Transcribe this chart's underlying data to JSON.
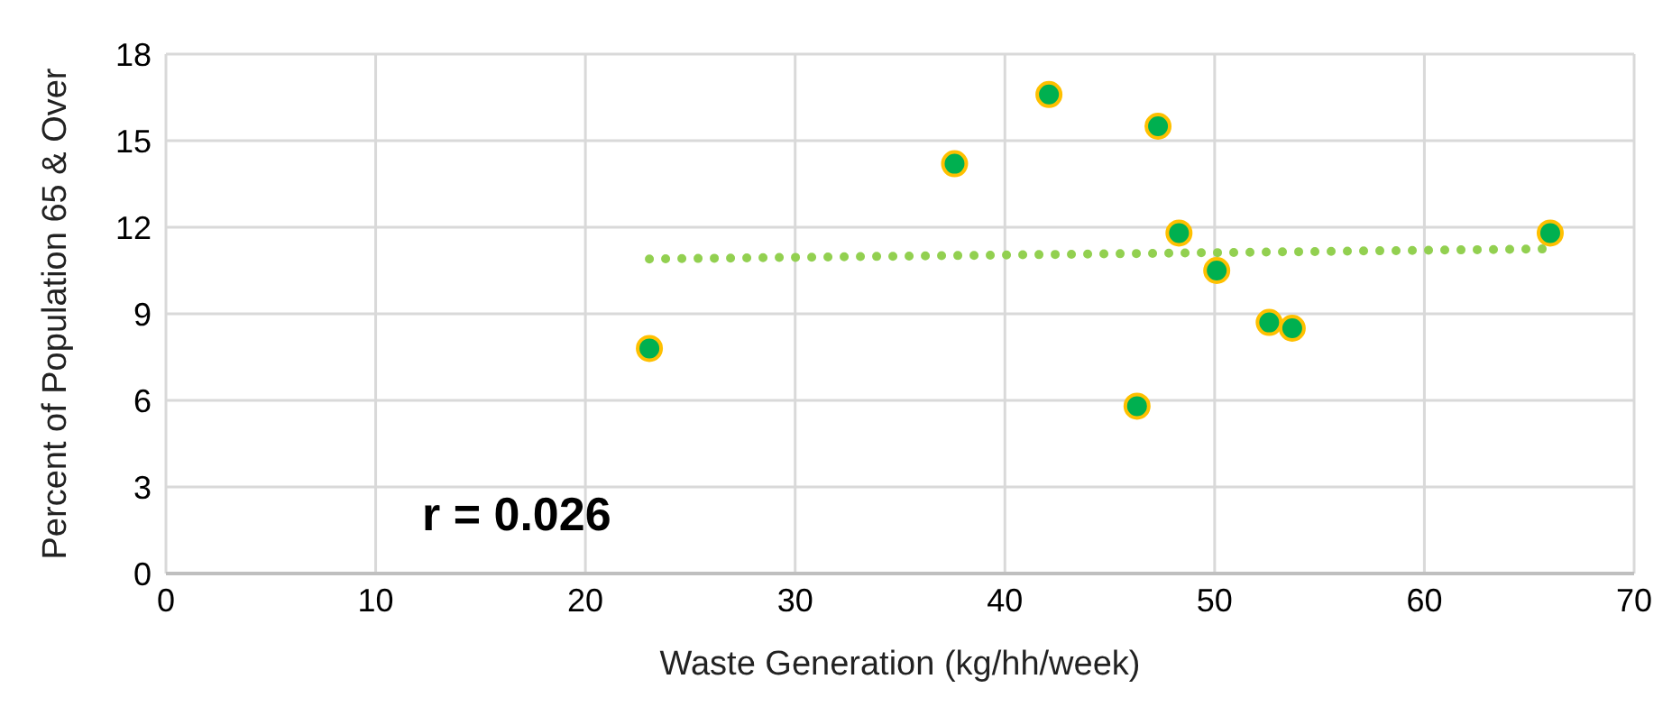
{
  "chart_data": {
    "type": "scatter",
    "xlabel": "Waste Generation (kg/hh/week)",
    "ylabel": "Percent of Population 65 & Over",
    "xlim": [
      0,
      70
    ],
    "xticks": [
      0,
      10,
      20,
      30,
      40,
      50,
      60,
      70
    ],
    "ylim": [
      0,
      18
    ],
    "yticks": [
      0,
      3,
      6,
      9,
      12,
      15,
      18
    ],
    "grid": true,
    "marker": "circle",
    "annotations": [
      "r = 0.026"
    ],
    "series": [
      {
        "color": "#00b050",
        "x": [
          23.05,
          37.6,
          42.1,
          47.3,
          48.3,
          50.1,
          52.6,
          53.7,
          46.3,
          66.0
        ],
        "values": [
          7.8,
          14.2,
          16.6,
          15.5,
          11.8,
          10.5,
          8.7,
          8.5,
          5.8,
          11.8
        ]
      },
      {
        "type": "line",
        "color": "#92d050",
        "line_style": "dotted",
        "marker": "none",
        "x": [
          23.05,
          66.0
        ],
        "values": [
          10.9,
          11.25
        ]
      }
    ]
  }
}
